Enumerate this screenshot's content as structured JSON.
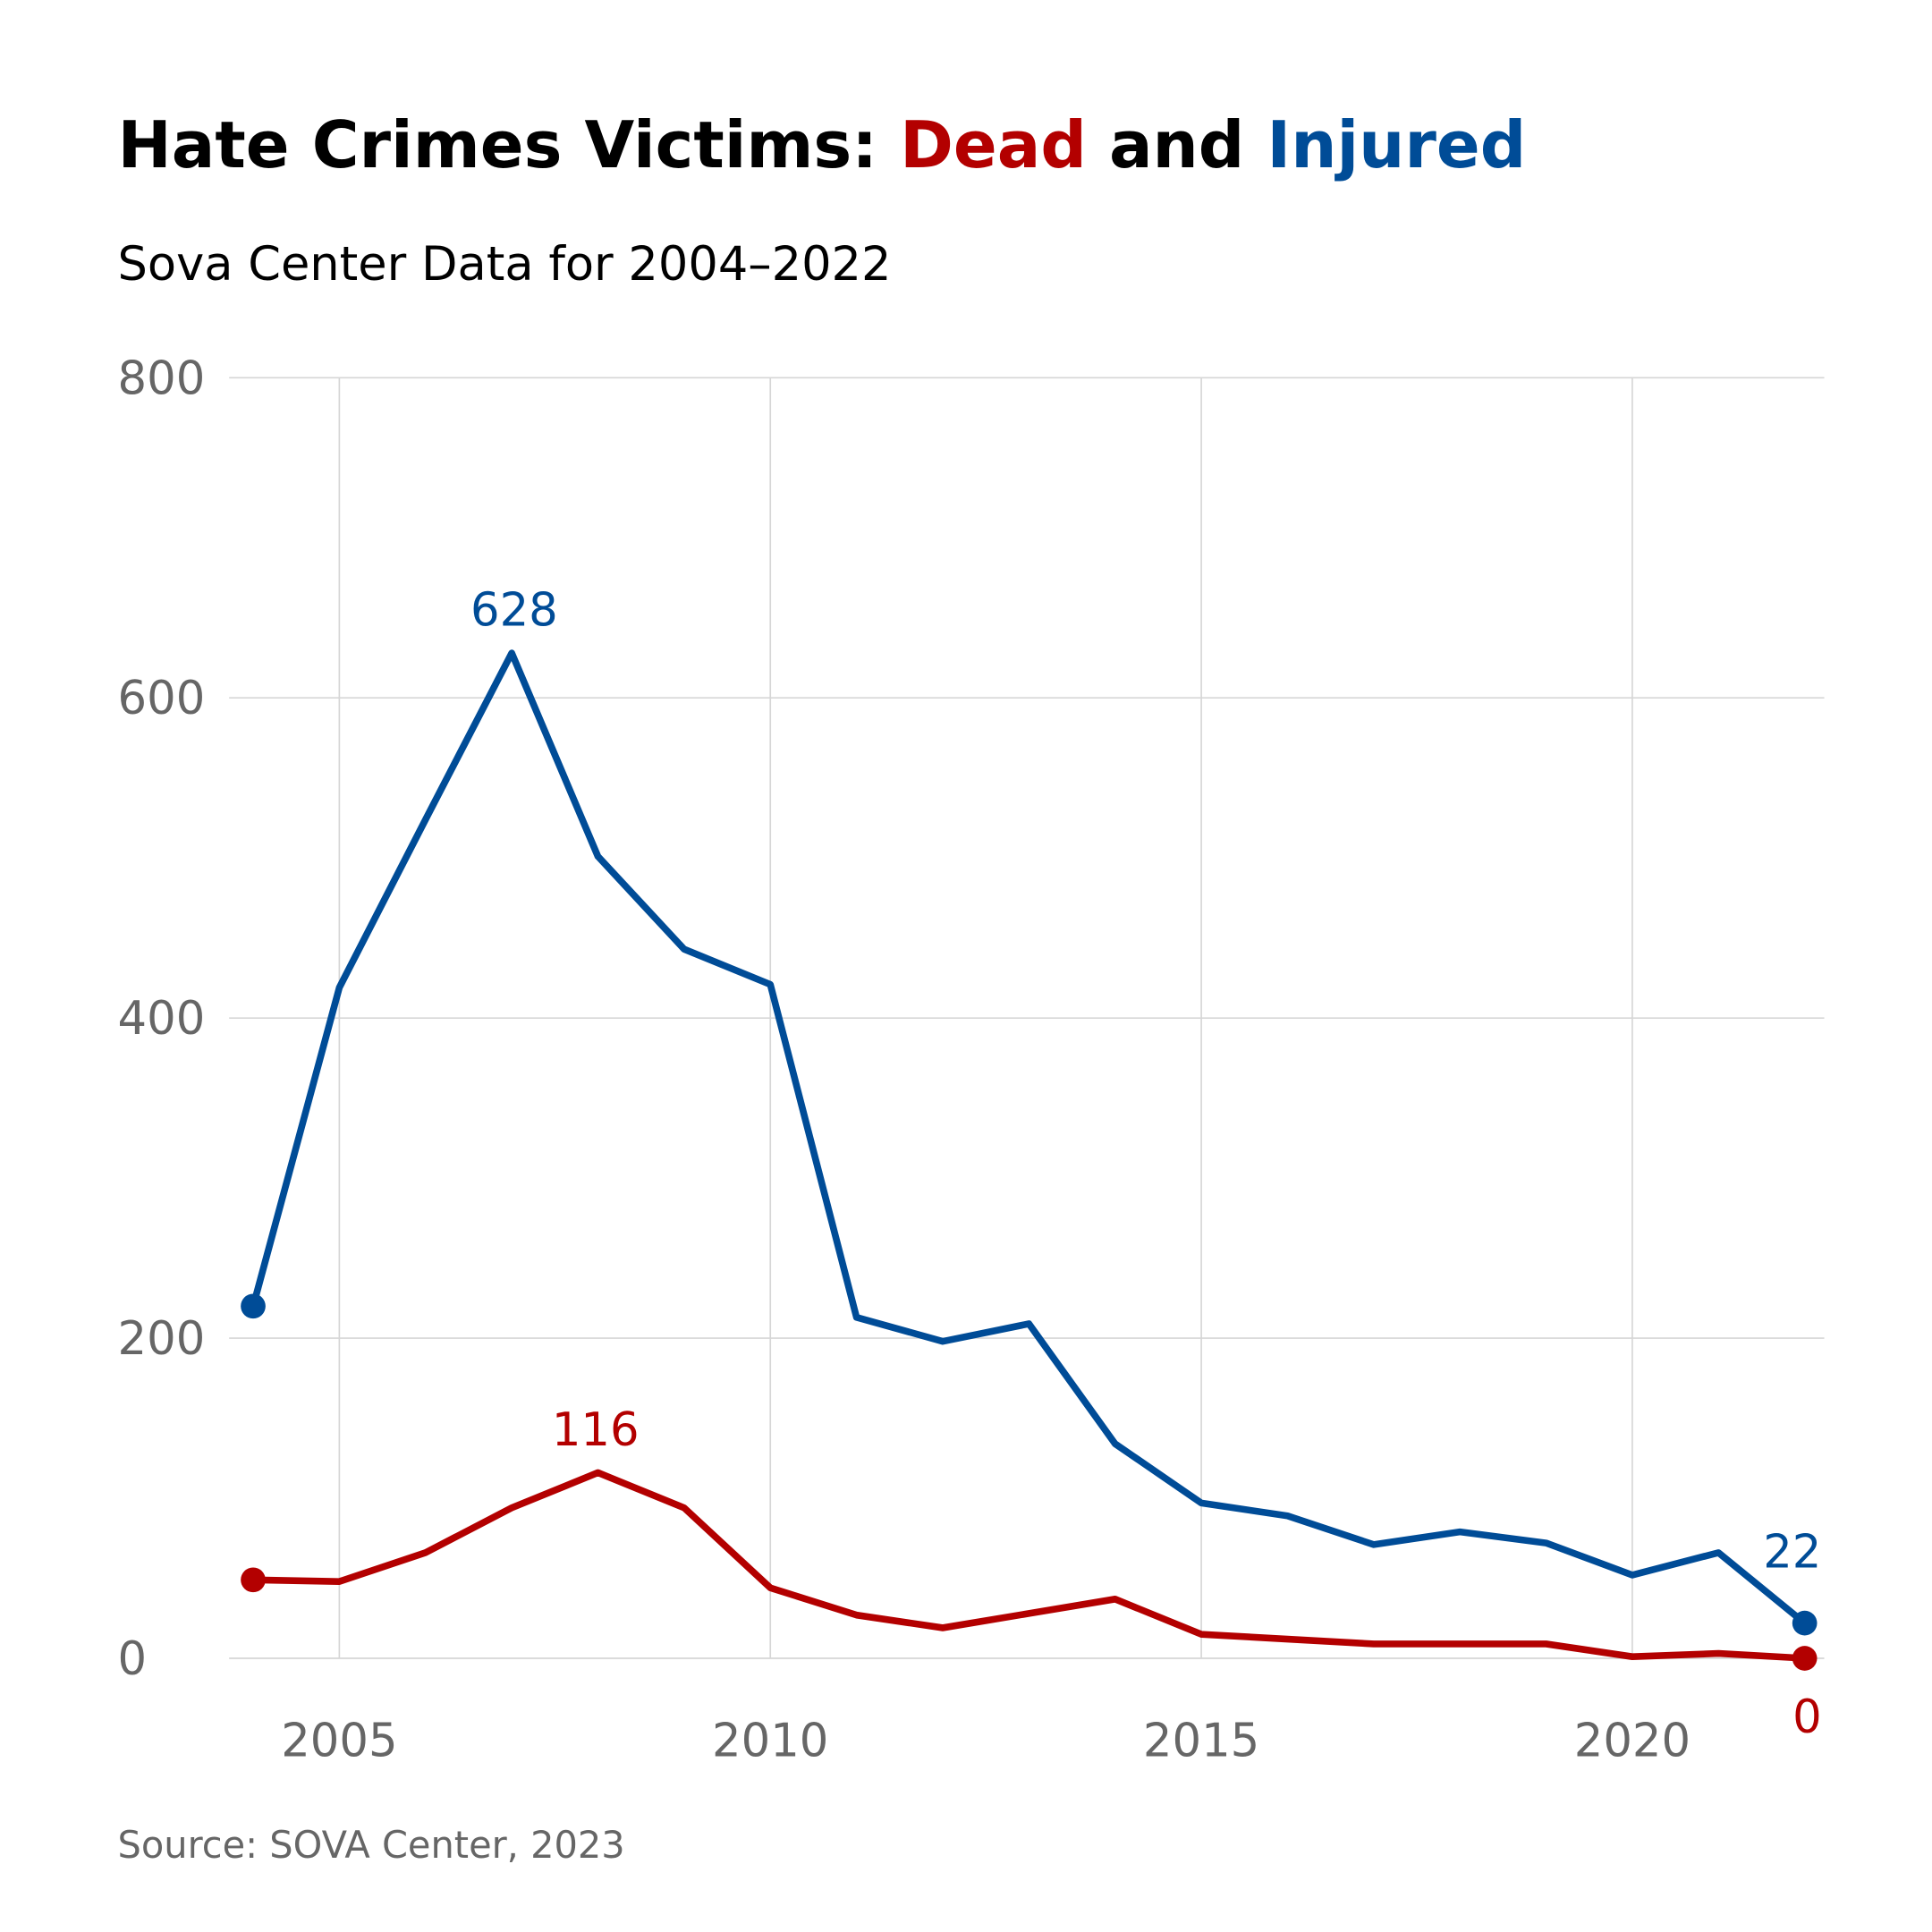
{
  "chart_data": {
    "type": "line",
    "title_parts": [
      {
        "text": "Hate Crimes Victims: ",
        "color": "#000000"
      },
      {
        "text": "Dead",
        "color": "#b30000"
      },
      {
        "text": " and ",
        "color": "#000000"
      },
      {
        "text": "Injured",
        "color": "#004c97"
      }
    ],
    "subtitle": "Sova Center Data for 2004–2022",
    "source": "Source: SOVA Center, 2023",
    "xlim": [
      2004,
      2022
    ],
    "ylim": [
      0,
      800
    ],
    "x_ticks": [
      2005,
      2010,
      2015,
      2020
    ],
    "y_ticks": [
      0,
      200,
      400,
      600,
      800
    ],
    "grid": true,
    "x": [
      2004,
      2005,
      2006,
      2007,
      2008,
      2009,
      2010,
      2011,
      2012,
      2013,
      2014,
      2015,
      2016,
      2017,
      2018,
      2019,
      2020,
      2021,
      2022
    ],
    "series": [
      {
        "name": "Injured",
        "color": "#004c97",
        "values": [
          220,
          419,
          524,
          628,
          501,
          443,
          421,
          213,
          198,
          209,
          134,
          97,
          89,
          71,
          79,
          72,
          52,
          66,
          22
        ],
        "labels": [
          {
            "x": 2007,
            "text": "628"
          },
          {
            "x": 2022,
            "text": "22"
          }
        ]
      },
      {
        "name": "Dead",
        "color": "#b30000",
        "values": [
          49,
          48,
          66,
          94,
          116,
          94,
          44,
          27,
          19,
          28,
          37,
          15,
          12,
          9,
          9,
          9,
          1,
          3,
          0
        ],
        "labels": [
          {
            "x": 2008,
            "text": "116"
          },
          {
            "x": 2022,
            "text": "0"
          }
        ]
      }
    ]
  }
}
